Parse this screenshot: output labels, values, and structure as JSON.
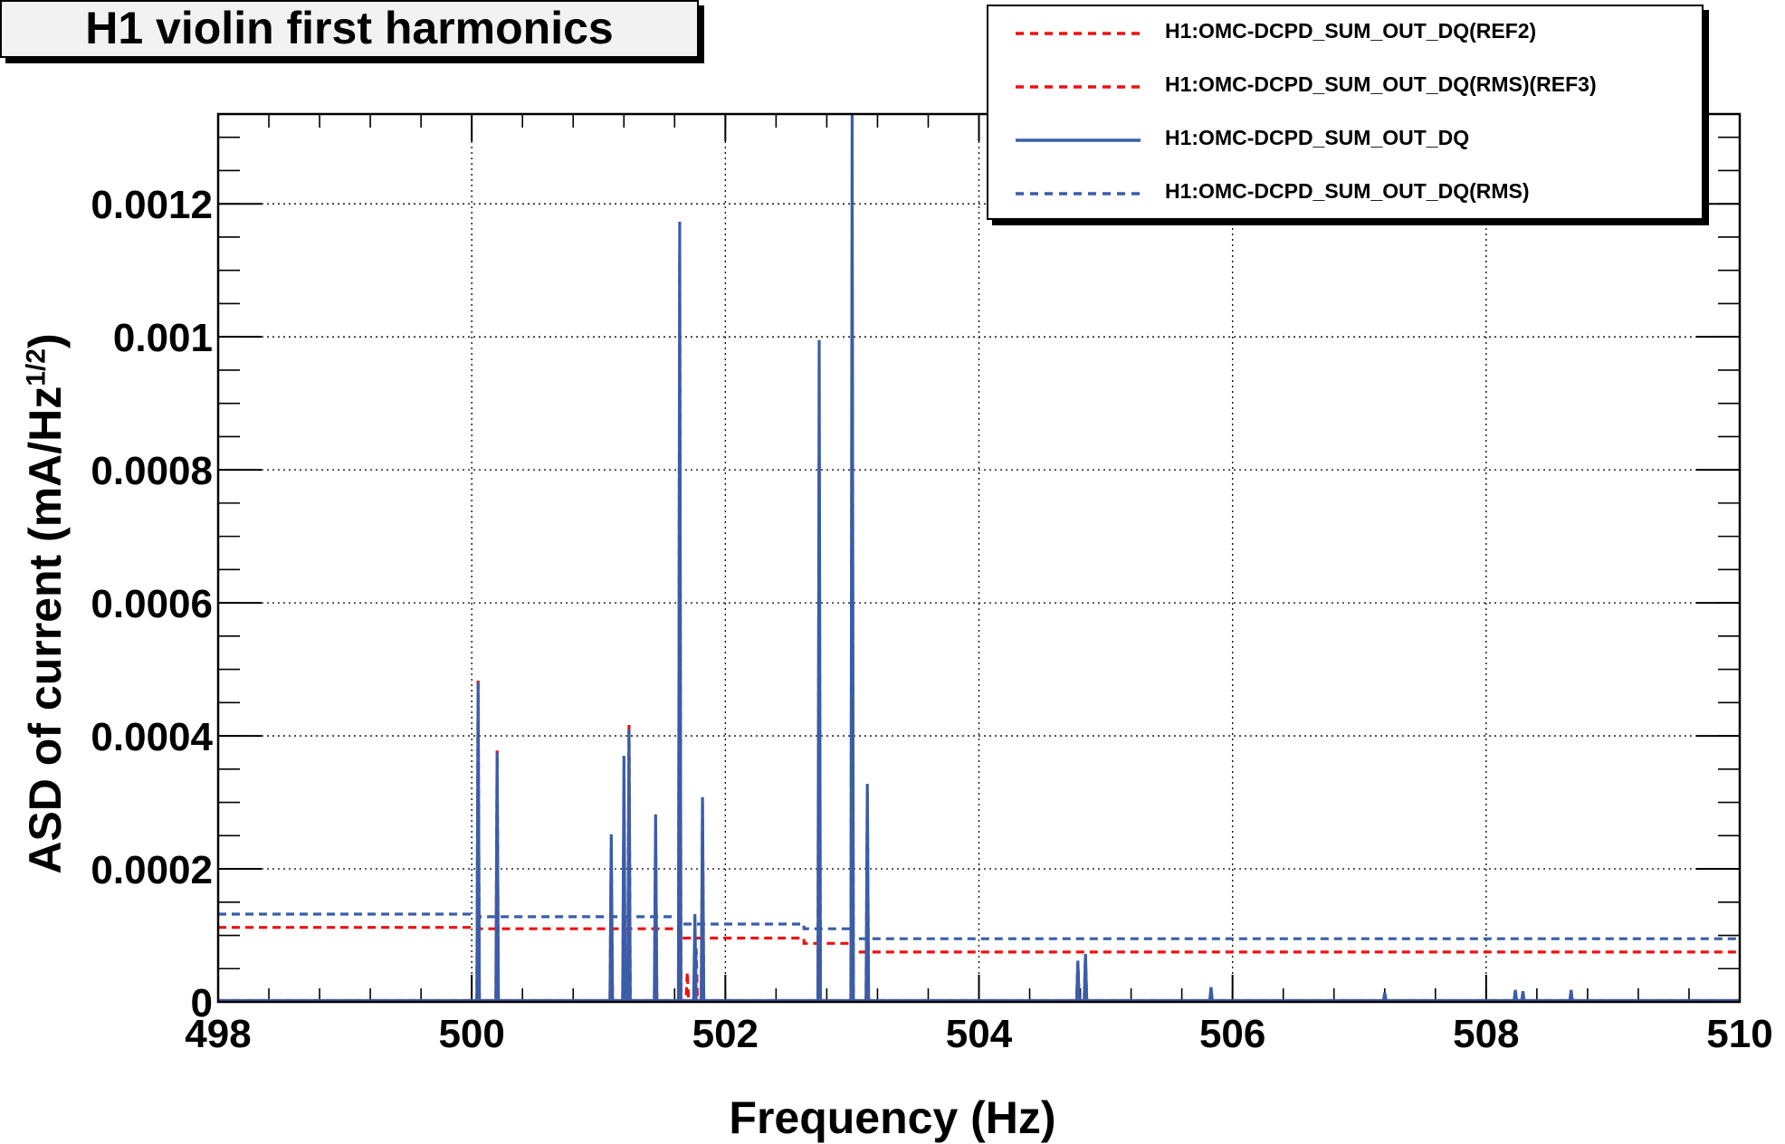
{
  "chart_data": {
    "type": "line",
    "title": "H1 violin first harmonics",
    "xlabel": "Frequency (Hz)",
    "ylabel": "ASD of current (mA/Hz",
    "ylabel_sup": "1/2",
    "ylabel_close": ")",
    "xlim": [
      498,
      510
    ],
    "ylim": [
      0,
      0.001335
    ],
    "x_ticks": [
      498,
      500,
      502,
      504,
      506,
      508,
      510
    ],
    "x_tick_labels": [
      "498",
      "500",
      "502",
      "504",
      "506",
      "508",
      "510"
    ],
    "y_ticks": [
      0,
      0.0002,
      0.0004,
      0.0006,
      0.0008,
      0.001,
      0.0012
    ],
    "y_tick_labels": [
      "0",
      "0.0002",
      "0.0004",
      "0.0006",
      "0.0008",
      "0.001",
      "0.0012"
    ],
    "grid": true,
    "legend_position": "top-right",
    "series": [
      {
        "name": "H1:OMC-DCPD_SUM_OUT_DQ(REF2)",
        "style": "dashed",
        "color": "#ee1111",
        "x": [
          498.0,
          500.04,
          500.05,
          500.06,
          500.19,
          500.2,
          500.21,
          501.09,
          501.1,
          501.11,
          501.19,
          501.2,
          501.21,
          501.23,
          501.24,
          501.25,
          501.44,
          501.45,
          501.46,
          501.63,
          501.64,
          501.65,
          501.69,
          501.7,
          501.71,
          501.76,
          501.77,
          501.78,
          501.81,
          501.82,
          501.83,
          502.73,
          502.74,
          502.75,
          502.99,
          503.0,
          503.01,
          503.11,
          503.12,
          503.13,
          504.77,
          504.78,
          504.79,
          504.83,
          504.84,
          504.85,
          510.0
        ],
        "values": [
          2e-06,
          2e-06,
          0.000487,
          2e-06,
          2e-06,
          0.000378,
          2e-06,
          2e-06,
          0.00023,
          2e-06,
          2e-06,
          0.0003,
          2e-06,
          2e-06,
          0.000418,
          2e-06,
          2e-06,
          0.000255,
          2e-06,
          2e-06,
          0.001125,
          2e-06,
          2e-06,
          4.5e-05,
          2e-06,
          2e-06,
          8e-05,
          2e-06,
          2e-06,
          0.0003,
          2e-06,
          2e-06,
          0.00081,
          2e-06,
          2e-06,
          0.001135,
          2e-06,
          2e-06,
          0.00032,
          2e-06,
          2e-06,
          6e-05,
          2e-06,
          2e-06,
          7e-05,
          2e-06,
          2e-06
        ]
      },
      {
        "name": "H1:OMC-DCPD_SUM_OUT_DQ(RMS)(REF3)",
        "style": "dashed",
        "color": "#ee1111",
        "x": [
          498.0,
          500.05,
          500.05,
          501.64,
          501.64,
          502.62,
          502.62,
          503.0,
          503.0,
          510.0
        ],
        "values": [
          0.000112,
          0.000112,
          0.00011,
          0.00011,
          9.6e-05,
          9.6e-05,
          8.8e-05,
          8.8e-05,
          7.5e-05,
          7.5e-05
        ]
      },
      {
        "name": "H1:OMC-DCPD_SUM_OUT_DQ",
        "style": "solid",
        "color": "#3a5da8",
        "x": [
          498.0,
          500.04,
          500.05,
          500.06,
          500.19,
          500.2,
          500.21,
          501.09,
          501.1,
          501.11,
          501.19,
          501.2,
          501.21,
          501.23,
          501.24,
          501.25,
          501.44,
          501.45,
          501.46,
          501.63,
          501.64,
          501.65,
          501.75,
          501.76,
          501.77,
          501.81,
          501.82,
          501.83,
          502.73,
          502.74,
          502.75,
          502.99,
          503.0,
          503.01,
          503.11,
          503.12,
          503.13,
          504.77,
          504.78,
          504.79,
          504.83,
          504.84,
          504.85,
          505.82,
          505.83,
          505.84,
          507.19,
          507.2,
          507.21,
          508.22,
          508.23,
          508.24,
          508.28,
          508.29,
          508.3,
          508.66,
          508.67,
          508.68,
          510.0
        ],
        "values": [
          2e-06,
          2e-06,
          0.00048,
          2e-06,
          2e-06,
          0.000375,
          2e-06,
          2e-06,
          0.000252,
          2e-06,
          2e-06,
          0.00037,
          2e-06,
          2e-06,
          0.00041,
          2e-06,
          2e-06,
          0.000282,
          2e-06,
          2e-06,
          0.001173,
          2e-06,
          2e-06,
          0.000132,
          2e-06,
          2e-06,
          0.000308,
          2e-06,
          2e-06,
          0.000995,
          2e-06,
          2e-06,
          0.001335,
          2e-06,
          2e-06,
          0.000328,
          2e-06,
          2e-06,
          6.2e-05,
          2e-06,
          2e-06,
          7.2e-05,
          2e-06,
          2e-06,
          2.2e-05,
          2e-06,
          2e-06,
          1.4e-05,
          2e-06,
          2e-06,
          1.8e-05,
          2e-06,
          2e-06,
          1.6e-05,
          2e-06,
          2e-06,
          1.8e-05,
          2e-06,
          2e-06
        ]
      },
      {
        "name": "H1:OMC-DCPD_SUM_OUT_DQ(RMS)",
        "style": "dashed",
        "color": "#3a5da8",
        "x": [
          498.0,
          500.05,
          500.05,
          501.64,
          501.64,
          502.62,
          502.62,
          503.0,
          503.0,
          510.0
        ],
        "values": [
          0.000132,
          0.000132,
          0.000128,
          0.000128,
          0.000117,
          0.000117,
          0.00011,
          0.00011,
          9.5e-05,
          9.5e-05
        ]
      }
    ]
  }
}
